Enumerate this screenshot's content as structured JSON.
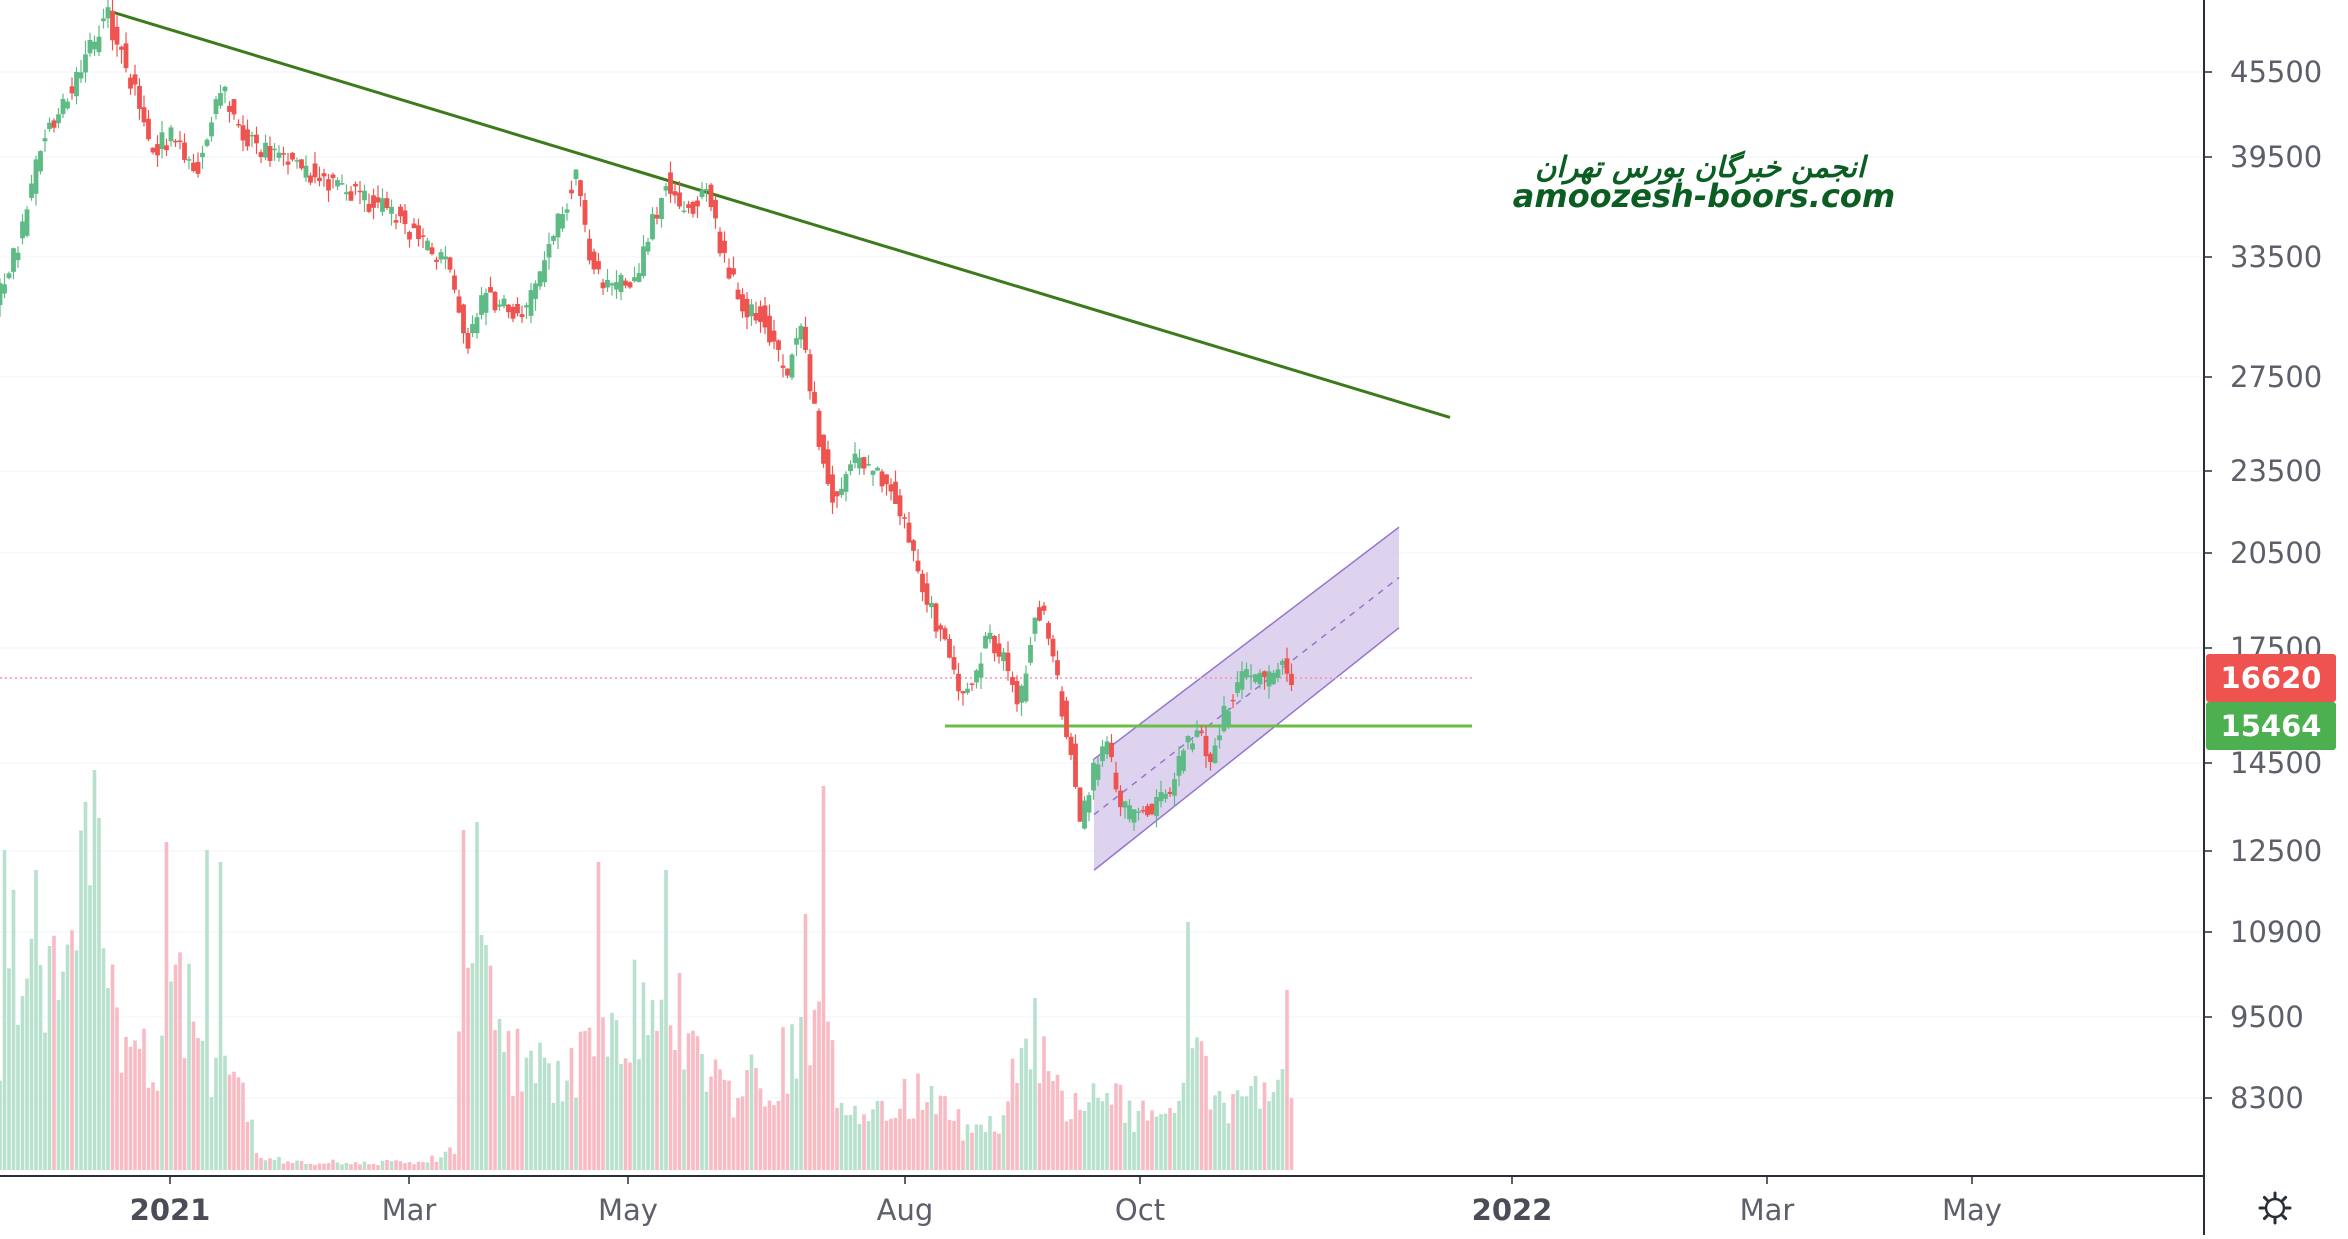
{
  "chart_data": {
    "type": "candlestick",
    "y_axis": {
      "ticks": [
        8300,
        9500,
        10900,
        12500,
        14500,
        17500,
        20500,
        23500,
        27500,
        33500,
        39500,
        45500
      ],
      "scale": "log",
      "ylim": [
        7200,
        55000
      ],
      "position": "right"
    },
    "x_axis": {
      "ticks": [
        {
          "label": "2021",
          "major": true
        },
        {
          "label": "Mar",
          "major": false
        },
        {
          "label": "May",
          "major": false
        },
        {
          "label": "Aug",
          "major": false
        },
        {
          "label": "Oct",
          "major": false
        },
        {
          "label": "2022",
          "major": true
        },
        {
          "label": "Mar",
          "major": false
        },
        {
          "label": "May",
          "major": false
        }
      ]
    },
    "price_tags": [
      {
        "value": 16620,
        "label": "16620",
        "color": "#ef5350"
      },
      {
        "value": 15464,
        "label": "15464",
        "color": "#4caf50"
      }
    ],
    "price_path": [
      [
        0,
        31000
      ],
      [
        25,
        34500
      ],
      [
        45,
        40500
      ],
      [
        70,
        43500
      ],
      [
        90,
        46000
      ],
      [
        110,
        49500
      ],
      [
        135,
        45000
      ],
      [
        155,
        40000
      ],
      [
        180,
        41000
      ],
      [
        200,
        38500
      ],
      [
        225,
        44500
      ],
      [
        245,
        41000
      ],
      [
        270,
        39800
      ],
      [
        300,
        39000
      ],
      [
        330,
        38000
      ],
      [
        360,
        37000
      ],
      [
        400,
        36000
      ],
      [
        430,
        34000
      ],
      [
        455,
        33000
      ],
      [
        470,
        29000
      ],
      [
        490,
        31500
      ],
      [
        510,
        30800
      ],
      [
        530,
        30500
      ],
      [
        550,
        33500
      ],
      [
        570,
        36500
      ],
      [
        580,
        38500
      ],
      [
        595,
        33000
      ],
      [
        610,
        32000
      ],
      [
        640,
        32000
      ],
      [
        655,
        35000
      ],
      [
        670,
        38000
      ],
      [
        690,
        36000
      ],
      [
        710,
        37500
      ],
      [
        725,
        34000
      ],
      [
        745,
        31000
      ],
      [
        765,
        30500
      ],
      [
        790,
        27500
      ],
      [
        805,
        30500
      ],
      [
        815,
        27000
      ],
      [
        825,
        24500
      ],
      [
        840,
        22000
      ],
      [
        855,
        24000
      ],
      [
        875,
        23500
      ],
      [
        895,
        23000
      ],
      [
        910,
        21500
      ],
      [
        930,
        19000
      ],
      [
        950,
        17500
      ],
      [
        965,
        16000
      ],
      [
        980,
        16500
      ],
      [
        990,
        18000
      ],
      [
        1010,
        17000
      ],
      [
        1025,
        16000
      ],
      [
        1040,
        18500
      ],
      [
        1050,
        18500
      ],
      [
        1065,
        16000
      ],
      [
        1075,
        15000
      ],
      [
        1085,
        13000
      ],
      [
        1100,
        14500
      ],
      [
        1110,
        15000
      ],
      [
        1125,
        13500
      ],
      [
        1140,
        13200
      ],
      [
        1160,
        13500
      ],
      [
        1175,
        13800
      ],
      [
        1190,
        15000
      ],
      [
        1205,
        15300
      ],
      [
        1215,
        14400
      ],
      [
        1225,
        15500
      ],
      [
        1240,
        16500
      ],
      [
        1255,
        16800
      ],
      [
        1270,
        16500
      ],
      [
        1285,
        17200
      ],
      [
        1295,
        16620
      ]
    ],
    "volume_path": [
      [
        0,
        0.3
      ],
      [
        20,
        0.55
      ],
      [
        40,
        0.4
      ],
      [
        60,
        0.6
      ],
      [
        90,
        0.95
      ],
      [
        110,
        0.45
      ],
      [
        130,
        0.25
      ],
      [
        160,
        0.3
      ],
      [
        180,
        0.5
      ],
      [
        200,
        0.3
      ],
      [
        230,
        0.3
      ],
      [
        260,
        0.03
      ],
      [
        300,
        0.02
      ],
      [
        360,
        0.02
      ],
      [
        420,
        0.02
      ],
      [
        455,
        0.05
      ],
      [
        465,
        0.7
      ],
      [
        480,
        0.5
      ],
      [
        500,
        0.3
      ],
      [
        540,
        0.25
      ],
      [
        580,
        0.3
      ],
      [
        600,
        0.45
      ],
      [
        620,
        0.3
      ],
      [
        640,
        0.45
      ],
      [
        660,
        0.55
      ],
      [
        680,
        0.4
      ],
      [
        700,
        0.3
      ],
      [
        730,
        0.2
      ],
      [
        760,
        0.25
      ],
      [
        800,
        0.3
      ],
      [
        820,
        0.35
      ],
      [
        840,
        0.2
      ],
      [
        880,
        0.15
      ],
      [
        920,
        0.2
      ],
      [
        960,
        0.12
      ],
      [
        1000,
        0.1
      ],
      [
        1030,
        0.4
      ],
      [
        1050,
        0.2
      ],
      [
        1080,
        0.15
      ],
      [
        1100,
        0.2
      ],
      [
        1130,
        0.15
      ],
      [
        1160,
        0.12
      ],
      [
        1180,
        0.2
      ],
      [
        1200,
        0.3
      ],
      [
        1220,
        0.15
      ],
      [
        1250,
        0.2
      ],
      [
        1280,
        0.25
      ],
      [
        1300,
        0.15
      ]
    ],
    "volume_spikes": [
      [
        3,
        0.8
      ],
      [
        12,
        0.7
      ],
      [
        36,
        0.75
      ],
      [
        86,
        0.92
      ],
      [
        99,
        0.88
      ],
      [
        166,
        0.82
      ],
      [
        206,
        0.8
      ],
      [
        222,
        0.77
      ],
      [
        464,
        0.85
      ],
      [
        478,
        0.87
      ],
      [
        597,
        0.77
      ],
      [
        666,
        0.75
      ],
      [
        806,
        0.64
      ],
      [
        823,
        0.96
      ],
      [
        1037,
        0.43
      ],
      [
        1190,
        0.62
      ],
      [
        1285,
        0.45
      ]
    ],
    "lines": [
      {
        "name": "downtrend",
        "from": [
          112,
          49500
        ],
        "to": [
          1450,
          25700
        ],
        "color": "#3d7a1c"
      },
      {
        "name": "support",
        "from": [
          945,
          15464
        ],
        "to": [
          1472,
          15464
        ],
        "color": "#6cbd45"
      },
      {
        "name": "current-price",
        "from": [
          0,
          16620
        ],
        "to": [
          1472,
          16620
        ],
        "color": "#f48fb1",
        "dashed": true
      }
    ],
    "channel": {
      "upper": [
        [
          1094,
          14600
        ],
        [
          1399,
          21400
        ]
      ],
      "lower": [
        [
          1094,
          12100
        ],
        [
          1399,
          18100
        ]
      ],
      "fill": "#d1c4e9",
      "stroke": "#9575cd"
    },
    "watermark": {
      "line1": "انجمن خبرگان بورس تهران",
      "line2": "amoozesh-boors.com"
    }
  },
  "icons": {
    "settings": "gear-icon"
  },
  "colors": {
    "up": "#26a69a",
    "up_candle": "#5fbb86",
    "down": "#ef5350",
    "vol_up": "#b7e1cd",
    "vol_down": "#f8bbc4",
    "axis_line": "#2a2e39",
    "grid": "#f0f3fa"
  }
}
